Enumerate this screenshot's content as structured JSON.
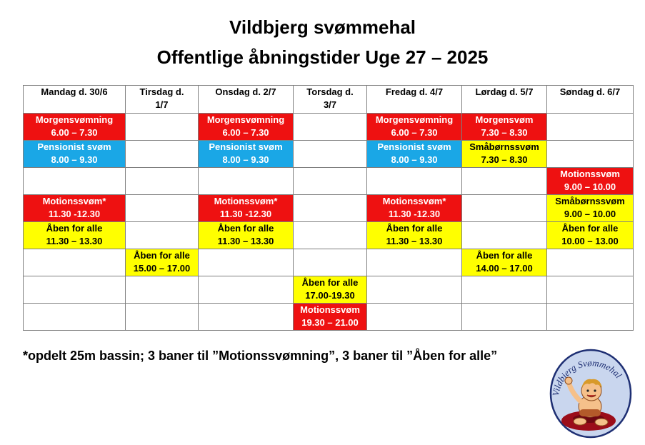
{
  "title": "Vildbjerg svømmehal",
  "subtitle": "Offentlige åbningstider Uge 27 – 2025",
  "colors": {
    "red": "#ee1111",
    "blue": "#1aa7e6",
    "yellow": "#ffff00"
  },
  "days": [
    {
      "line1": "Mandag d. 30/6",
      "line2": ""
    },
    {
      "line1": "Tirsdag d.",
      "line2": "1/7"
    },
    {
      "line1": "Onsdag d. 2/7",
      "line2": ""
    },
    {
      "line1": "Torsdag d.",
      "line2": "3/7"
    },
    {
      "line1": "Fredag d. 4/7",
      "line2": ""
    },
    {
      "line1": "Lørdag d. 5/7",
      "line2": ""
    },
    {
      "line1": "Søndag d. 6/7",
      "line2": ""
    }
  ],
  "rows": [
    [
      {
        "color": "red",
        "name": "Morgensvømning",
        "time": "6.00 – 7.30"
      },
      null,
      {
        "color": "red",
        "name": "Morgensvømning",
        "time": "6.00 – 7.30"
      },
      null,
      {
        "color": "red",
        "name": "Morgensvømning",
        "time": "6.00 – 7.30"
      },
      {
        "color": "red",
        "name": "Morgensvøm",
        "time": "7.30 – 8.30"
      },
      null
    ],
    [
      {
        "color": "blue",
        "name": "Pensionist svøm",
        "time": "8.00 – 9.30"
      },
      null,
      {
        "color": "blue",
        "name": "Pensionist svøm",
        "time": "8.00 – 9.30"
      },
      null,
      {
        "color": "blue",
        "name": "Pensionist svøm",
        "time": "8.00 – 9.30"
      },
      {
        "color": "yellow",
        "name": "Småbørnssvøm",
        "time": "7.30 – 8.30"
      },
      null
    ],
    [
      null,
      null,
      null,
      null,
      null,
      null,
      {
        "color": "red",
        "name": "Motionssvøm",
        "time": "9.00 – 10.00"
      }
    ],
    [
      {
        "color": "red",
        "name": "Motionssvøm*",
        "time": "11.30 -12.30"
      },
      null,
      {
        "color": "red",
        "name": "Motionssvøm*",
        "time": "11.30 -12.30"
      },
      null,
      {
        "color": "red",
        "name": "Motionssvøm*",
        "time": "11.30 -12.30"
      },
      null,
      {
        "color": "yellow",
        "name": "Småbørnssvøm",
        "time": "9.00 – 10.00"
      }
    ],
    [
      {
        "color": "yellow",
        "name": "Åben for alle",
        "time": "11.30 – 13.30"
      },
      null,
      {
        "color": "yellow",
        "name": "Åben for alle",
        "time": "11.30 – 13.30"
      },
      null,
      {
        "color": "yellow",
        "name": "Åben for alle",
        "time": "11.30 – 13.30"
      },
      null,
      {
        "color": "yellow",
        "name": "Åben for alle",
        "time": "10.00 – 13.00"
      }
    ],
    [
      null,
      {
        "color": "yellow",
        "name": "Åben for alle",
        "time": "15.00 – 17.00"
      },
      null,
      null,
      null,
      {
        "color": "yellow",
        "name": "Åben for alle",
        "time": "14.00 – 17.00"
      },
      null
    ],
    [
      null,
      null,
      null,
      {
        "color": "yellow",
        "name": "Åben for alle",
        "time": "17.00-19.30"
      },
      null,
      null,
      null
    ],
    [
      null,
      null,
      null,
      {
        "color": "red",
        "name": "Motionssvøm",
        "time": "19.30 – 21.00"
      },
      null,
      null,
      null
    ]
  ],
  "note": "*opdelt 25m bassin; 3 baner til ”Motionssvømning”, 3 baner til ”Åben for alle”",
  "logo": {
    "icon": "swimmer-mascot-logo",
    "text": "Vildbjerg Svømmehal"
  }
}
